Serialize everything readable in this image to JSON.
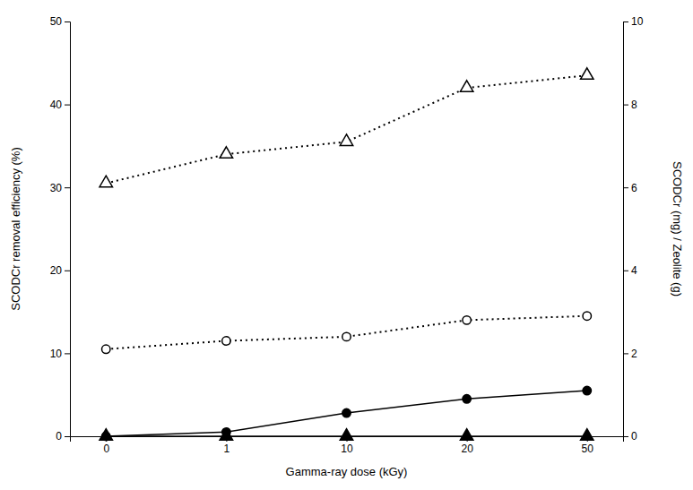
{
  "chart_data": {
    "type": "line",
    "xlabel": "Gamma-ray dose (kGy)",
    "ylabel": "SCODCr removal efficiency (%)",
    "y2label": "SCODCr (mg) / Zeolite (g)",
    "categories": [
      "0",
      "1",
      "10",
      "20",
      "50"
    ],
    "series": [
      {
        "color": "#000000",
        "marker": "triangle-open",
        "line_style": "dotted",
        "values": [
          30.5,
          34.0,
          35.5,
          42.0,
          43.5
        ]
      },
      {
        "color": "#000000",
        "marker": "circle-open",
        "line_style": "dotted",
        "values": [
          10.5,
          11.5,
          12.0,
          14.0,
          14.5
        ]
      },
      {
        "color": "#000000",
        "marker": "circle",
        "line_style": "solid",
        "values": [
          0.0,
          0.5,
          2.8,
          4.5,
          5.5
        ]
      },
      {
        "color": "#000000",
        "marker": "triangle",
        "line_style": "solid",
        "values": [
          0.0,
          0.0,
          0.0,
          0.0,
          0.0
        ]
      }
    ],
    "ylim": [
      0,
      50
    ],
    "yticks": [
      0,
      10,
      20,
      30,
      40,
      50
    ],
    "y2lim": [
      0,
      10
    ],
    "y2ticks": [
      0,
      2,
      4,
      6,
      8,
      10
    ],
    "grid": false
  }
}
